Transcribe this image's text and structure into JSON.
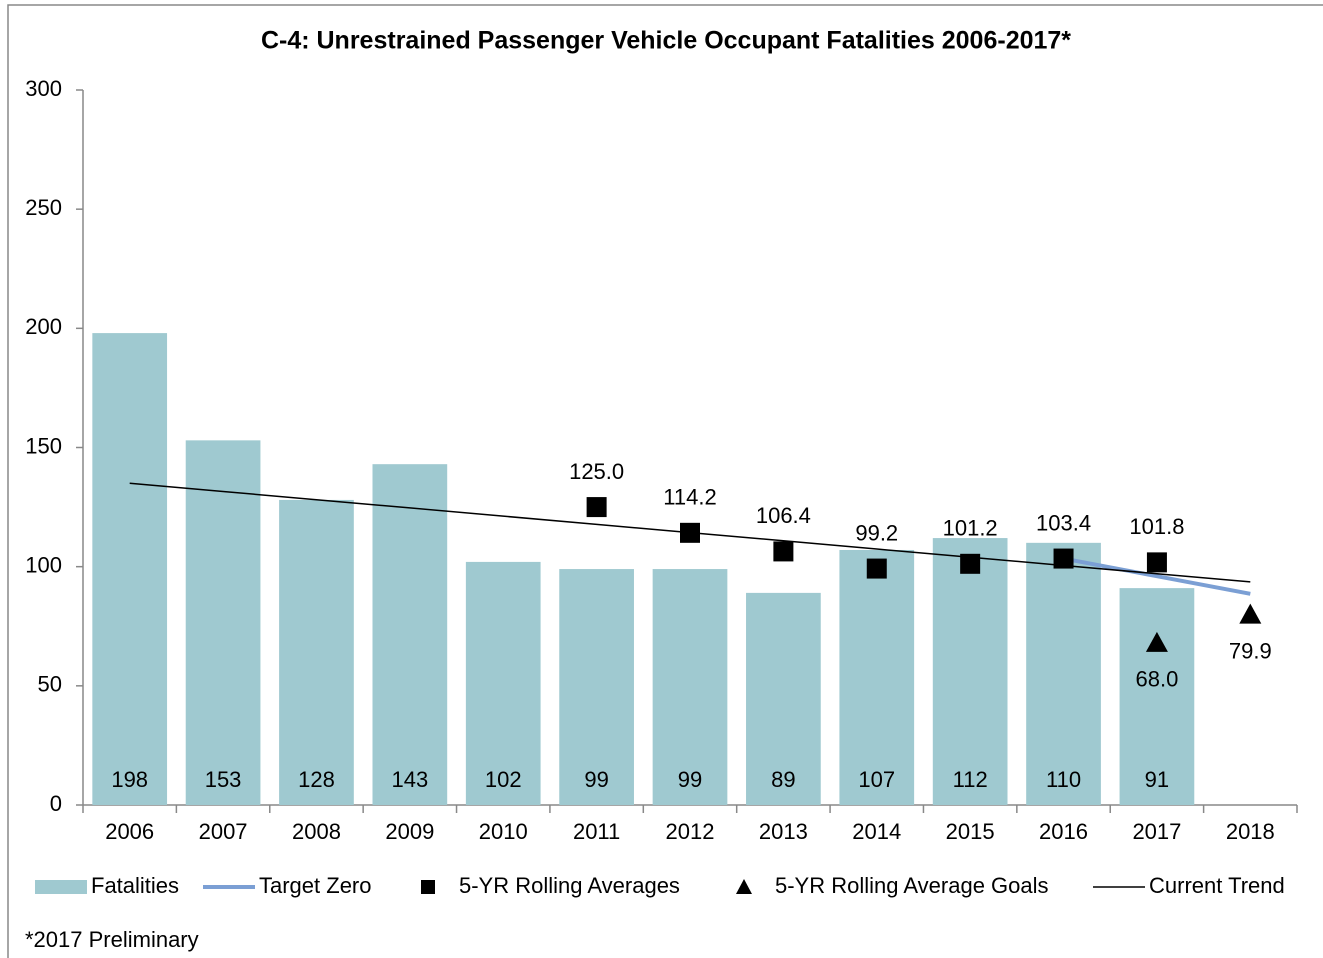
{
  "chart_data": {
    "type": "bar",
    "title": "C-4: Unrestrained Passenger Vehicle Occupant Fatalities 2006-2017*",
    "categories": [
      "2006",
      "2007",
      "2008",
      "2009",
      "2010",
      "2011",
      "2012",
      "2013",
      "2014",
      "2015",
      "2016",
      "2017",
      "2018"
    ],
    "series": [
      {
        "name": "Fatalities",
        "type": "bar",
        "color": "#9fc9d0",
        "values": [
          198,
          153,
          128,
          143,
          102,
          99,
          99,
          89,
          107,
          112,
          110,
          91,
          null
        ]
      },
      {
        "name": "Target Zero",
        "type": "line",
        "color": "#7b9fd4",
        "width": 4,
        "values": [
          null,
          null,
          null,
          null,
          null,
          null,
          null,
          null,
          null,
          null,
          103.4,
          96,
          88.6
        ]
      },
      {
        "name": "5-YR Rolling Averages",
        "type": "scatter",
        "marker": "square",
        "color": "#000000",
        "label_position": "above",
        "values": [
          null,
          null,
          null,
          null,
          null,
          125.0,
          114.2,
          106.4,
          99.2,
          101.2,
          103.4,
          101.8,
          null
        ],
        "value_labels": [
          null,
          null,
          null,
          null,
          null,
          "125.0",
          "114.2",
          "106.4",
          "99.2",
          "101.2",
          "103.4",
          "101.8",
          null
        ]
      },
      {
        "name": "5-YR Rolling Average Goals",
        "type": "scatter",
        "marker": "triangle",
        "color": "#000000",
        "label_position": "below",
        "values": [
          null,
          null,
          null,
          null,
          null,
          null,
          null,
          null,
          null,
          null,
          null,
          68.0,
          79.9
        ],
        "value_labels": [
          null,
          null,
          null,
          null,
          null,
          null,
          null,
          null,
          null,
          null,
          null,
          "68.0",
          "79.9"
        ]
      },
      {
        "name": "Current Trend",
        "type": "line",
        "color": "#000000",
        "width": 1.5,
        "values": [
          135,
          131.55,
          128.1,
          124.65,
          121.2,
          117.75,
          114.3,
          110.85,
          107.4,
          103.95,
          100.5,
          97.05,
          93.6
        ]
      }
    ],
    "ylim": [
      0,
      300
    ],
    "yticks": [
      0,
      50,
      100,
      150,
      200,
      250,
      300
    ],
    "grid": false,
    "legend": "bottom",
    "note": "*2017 Preliminary"
  }
}
